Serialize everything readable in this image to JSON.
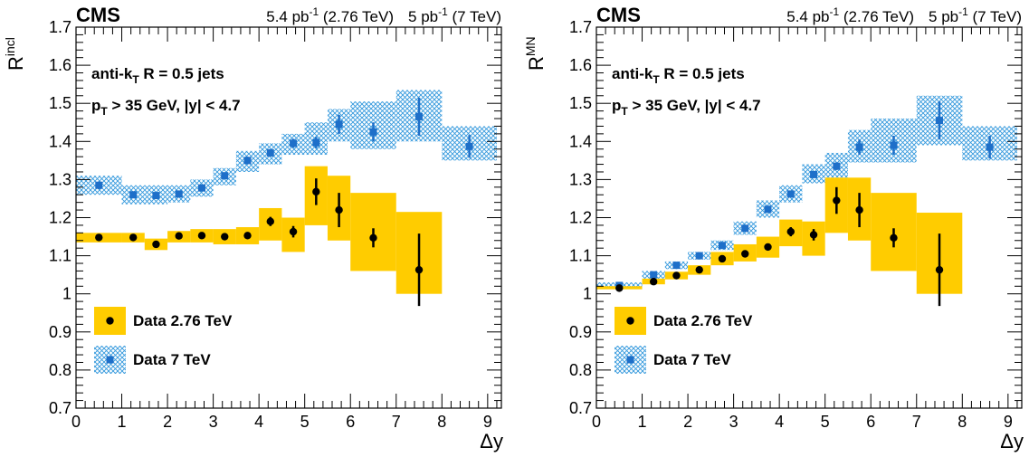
{
  "colors": {
    "band_2760": "#FFCC00",
    "hatch_7000": "#3399DD",
    "marker_2760": "#000000",
    "marker_7000": "#1E6FC9"
  },
  "chart_data": [
    {
      "type": "scatter",
      "panel": "left",
      "header": {
        "experiment": "CMS",
        "lumi_276": "5.4 pb",
        "lumi_276_sup": "-1",
        "lumi_276_energy": " (2.76 TeV)",
        "lumi_7": "5 pb",
        "lumi_7_sup": "-1",
        "lumi_7_energy": " (7 TeV)"
      },
      "ylabel_main": "R",
      "ylabel_sup": "incl",
      "xlabel": "Δy",
      "annotation_1": {
        "main": "anti-k",
        "sub": "T",
        "rest": " R = 0.5 jets"
      },
      "annotation_2": {
        "main": "p",
        "sub": "T",
        "rest": " > 35 GeV, |y| < 4.7"
      },
      "xlim": [
        0,
        9.3
      ],
      "ylim": [
        0.7,
        1.7
      ],
      "xticks": [
        0,
        1,
        2,
        3,
        4,
        5,
        6,
        7,
        8,
        9
      ],
      "yticks": [
        0.7,
        0.8,
        0.9,
        1,
        1.1,
        1.2,
        1.3,
        1.4,
        1.5,
        1.6,
        1.7
      ],
      "ytick_labels": [
        "0.7",
        "0.8",
        "0.9",
        "1",
        "1.1",
        "1.2",
        "1.3",
        "1.4",
        "1.5",
        "1.6",
        "1.7"
      ],
      "legend": [
        {
          "label": "Data 2.76 TeV",
          "style": "band_2760"
        },
        {
          "label": "Data 7 TeV",
          "style": "hatch_7000"
        }
      ],
      "series": [
        {
          "name": "Data 7 TeV",
          "style": "hatch_7000",
          "points": [
            {
              "x": 0.5,
              "y": 1.285,
              "lo": 0,
              "hi": 1,
              "ylo": 1.26,
              "yhi": 1.31,
              "err": 0.01
            },
            {
              "x": 1.25,
              "y": 1.26,
              "lo": 1,
              "hi": 1.5,
              "ylo": 1.235,
              "yhi": 1.285,
              "err": 0.008
            },
            {
              "x": 1.75,
              "y": 1.258,
              "lo": 1.5,
              "hi": 2,
              "ylo": 1.235,
              "yhi": 1.285,
              "err": 0.008
            },
            {
              "x": 2.25,
              "y": 1.262,
              "lo": 2,
              "hi": 2.5,
              "ylo": 1.24,
              "yhi": 1.285,
              "err": 0.008
            },
            {
              "x": 2.75,
              "y": 1.278,
              "lo": 2.5,
              "hi": 3,
              "ylo": 1.255,
              "yhi": 1.3,
              "err": 0.008
            },
            {
              "x": 3.25,
              "y": 1.31,
              "lo": 3,
              "hi": 3.5,
              "ylo": 1.285,
              "yhi": 1.33,
              "err": 0.008
            },
            {
              "x": 3.75,
              "y": 1.35,
              "lo": 3.5,
              "hi": 4,
              "ylo": 1.32,
              "yhi": 1.375,
              "err": 0.01
            },
            {
              "x": 4.25,
              "y": 1.37,
              "lo": 4,
              "hi": 4.5,
              "ylo": 1.34,
              "yhi": 1.395,
              "err": 0.01
            },
            {
              "x": 4.75,
              "y": 1.395,
              "lo": 4.5,
              "hi": 5,
              "ylo": 1.365,
              "yhi": 1.42,
              "err": 0.012
            },
            {
              "x": 5.25,
              "y": 1.397,
              "lo": 5,
              "hi": 5.5,
              "ylo": 1.365,
              "yhi": 1.45,
              "err": 0.015
            },
            {
              "x": 5.75,
              "y": 1.445,
              "lo": 5.5,
              "hi": 6,
              "ylo": 1.4,
              "yhi": 1.485,
              "err": 0.025
            },
            {
              "x": 6.5,
              "y": 1.425,
              "lo": 6,
              "hi": 7,
              "ylo": 1.38,
              "yhi": 1.505,
              "err": 0.025
            },
            {
              "x": 7.5,
              "y": 1.465,
              "lo": 7,
              "hi": 8,
              "ylo": 1.4,
              "yhi": 1.535,
              "err": 0.05
            },
            {
              "x": 8.6,
              "y": 1.387,
              "lo": 8,
              "hi": 9.2,
              "ylo": 1.35,
              "yhi": 1.44,
              "err": 0.03
            }
          ]
        },
        {
          "name": "Data 2.76 TeV",
          "style": "band_2760",
          "points": [
            {
              "x": 0.5,
              "y": 1.148,
              "lo": 0,
              "hi": 1,
              "ylo": 1.135,
              "yhi": 1.16,
              "err": 0.005
            },
            {
              "x": 1.25,
              "y": 1.148,
              "lo": 1,
              "hi": 1.5,
              "ylo": 1.135,
              "yhi": 1.16,
              "err": 0.005
            },
            {
              "x": 1.75,
              "y": 1.13,
              "lo": 1.5,
              "hi": 2,
              "ylo": 1.115,
              "yhi": 1.145,
              "err": 0.005
            },
            {
              "x": 2.25,
              "y": 1.152,
              "lo": 2,
              "hi": 2.5,
              "ylo": 1.135,
              "yhi": 1.165,
              "err": 0.006
            },
            {
              "x": 2.75,
              "y": 1.153,
              "lo": 2.5,
              "hi": 3,
              "ylo": 1.135,
              "yhi": 1.17,
              "err": 0.006
            },
            {
              "x": 3.25,
              "y": 1.15,
              "lo": 3,
              "hi": 3.5,
              "ylo": 1.13,
              "yhi": 1.17,
              "err": 0.007
            },
            {
              "x": 3.75,
              "y": 1.153,
              "lo": 3.5,
              "hi": 4,
              "ylo": 1.13,
              "yhi": 1.175,
              "err": 0.008
            },
            {
              "x": 4.25,
              "y": 1.19,
              "lo": 4,
              "hi": 4.5,
              "ylo": 1.14,
              "yhi": 1.225,
              "err": 0.012
            },
            {
              "x": 4.75,
              "y": 1.163,
              "lo": 4.5,
              "hi": 5,
              "ylo": 1.11,
              "yhi": 1.2,
              "err": 0.015
            },
            {
              "x": 5.25,
              "y": 1.268,
              "lo": 5,
              "hi": 5.5,
              "ylo": 1.18,
              "yhi": 1.335,
              "err": 0.035
            },
            {
              "x": 5.75,
              "y": 1.22,
              "lo": 5.5,
              "hi": 6,
              "ylo": 1.14,
              "yhi": 1.31,
              "err": 0.045
            },
            {
              "x": 6.5,
              "y": 1.147,
              "lo": 6,
              "hi": 7,
              "ylo": 1.06,
              "yhi": 1.265,
              "err": 0.025
            },
            {
              "x": 7.5,
              "y": 1.063,
              "lo": 7,
              "hi": 8,
              "ylo": 1.0,
              "yhi": 1.215,
              "err": 0.095
            }
          ]
        }
      ]
    },
    {
      "type": "scatter",
      "panel": "right",
      "header": {
        "experiment": "CMS",
        "lumi_276": "5.4 pb",
        "lumi_276_sup": "-1",
        "lumi_276_energy": " (2.76 TeV)",
        "lumi_7": "5 pb",
        "lumi_7_sup": "-1",
        "lumi_7_energy": " (7 TeV)"
      },
      "ylabel_main": "R",
      "ylabel_sup": "MN",
      "xlabel": "Δy",
      "annotation_1": {
        "main": "anti-k",
        "sub": "T",
        "rest": " R = 0.5 jets"
      },
      "annotation_2": {
        "main": "p",
        "sub": "T",
        "rest": " > 35 GeV, |y| < 4.7"
      },
      "xlim": [
        0,
        9.3
      ],
      "ylim": [
        0.7,
        1.7
      ],
      "xticks": [
        0,
        1,
        2,
        3,
        4,
        5,
        6,
        7,
        8,
        9
      ],
      "yticks": [
        0.7,
        0.8,
        0.9,
        1,
        1.1,
        1.2,
        1.3,
        1.4,
        1.5,
        1.6,
        1.7
      ],
      "ytick_labels": [
        "0.7",
        "0.8",
        "0.9",
        "1",
        "1.1",
        "1.2",
        "1.3",
        "1.4",
        "1.5",
        "1.6",
        "1.7"
      ],
      "legend": [
        {
          "label": "Data 2.76 TeV",
          "style": "band_2760"
        },
        {
          "label": "Data 7 TeV",
          "style": "hatch_7000"
        }
      ],
      "series": [
        {
          "name": "Data 7 TeV",
          "style": "hatch_7000",
          "points": [
            {
              "x": 0.5,
              "y": 1.022,
              "lo": 0,
              "hi": 1,
              "ylo": 1.015,
              "yhi": 1.03,
              "err": 0.003
            },
            {
              "x": 1.25,
              "y": 1.05,
              "lo": 1,
              "hi": 1.5,
              "ylo": 1.04,
              "yhi": 1.06,
              "err": 0.004
            },
            {
              "x": 1.75,
              "y": 1.075,
              "lo": 1.5,
              "hi": 2,
              "ylo": 1.065,
              "yhi": 1.085,
              "err": 0.004
            },
            {
              "x": 2.25,
              "y": 1.1,
              "lo": 2,
              "hi": 2.5,
              "ylo": 1.09,
              "yhi": 1.11,
              "err": 0.004
            },
            {
              "x": 2.75,
              "y": 1.127,
              "lo": 2.5,
              "hi": 3,
              "ylo": 1.115,
              "yhi": 1.14,
              "err": 0.005
            },
            {
              "x": 3.25,
              "y": 1.172,
              "lo": 3,
              "hi": 3.5,
              "ylo": 1.155,
              "yhi": 1.19,
              "err": 0.005
            },
            {
              "x": 3.75,
              "y": 1.222,
              "lo": 3.5,
              "hi": 4,
              "ylo": 1.2,
              "yhi": 1.245,
              "err": 0.006
            },
            {
              "x": 4.25,
              "y": 1.262,
              "lo": 4,
              "hi": 4.5,
              "ylo": 1.24,
              "yhi": 1.285,
              "err": 0.007
            },
            {
              "x": 4.75,
              "y": 1.313,
              "lo": 4.5,
              "hi": 5,
              "ylo": 1.29,
              "yhi": 1.34,
              "err": 0.008
            },
            {
              "x": 5.25,
              "y": 1.335,
              "lo": 5,
              "hi": 5.5,
              "ylo": 1.305,
              "yhi": 1.37,
              "err": 0.01
            },
            {
              "x": 5.75,
              "y": 1.385,
              "lo": 5.5,
              "hi": 6,
              "ylo": 1.345,
              "yhi": 1.43,
              "err": 0.02
            },
            {
              "x": 6.5,
              "y": 1.39,
              "lo": 6,
              "hi": 7,
              "ylo": 1.345,
              "yhi": 1.46,
              "err": 0.025
            },
            {
              "x": 7.5,
              "y": 1.455,
              "lo": 7,
              "hi": 8,
              "ylo": 1.39,
              "yhi": 1.52,
              "err": 0.05
            },
            {
              "x": 8.6,
              "y": 1.385,
              "lo": 8,
              "hi": 9.2,
              "ylo": 1.35,
              "yhi": 1.44,
              "err": 0.03
            }
          ]
        },
        {
          "name": "Data 2.76 TeV",
          "style": "band_2760",
          "points": [
            {
              "x": 0.5,
              "y": 1.015,
              "lo": 0,
              "hi": 1,
              "ylo": 1.012,
              "yhi": 1.02,
              "err": 0.002
            },
            {
              "x": 1.25,
              "y": 1.032,
              "lo": 1,
              "hi": 1.5,
              "ylo": 1.025,
              "yhi": 1.04,
              "err": 0.003
            },
            {
              "x": 1.75,
              "y": 1.048,
              "lo": 1.5,
              "hi": 2,
              "ylo": 1.038,
              "yhi": 1.058,
              "err": 0.003
            },
            {
              "x": 2.25,
              "y": 1.063,
              "lo": 2,
              "hi": 2.5,
              "ylo": 1.05,
              "yhi": 1.075,
              "err": 0.004
            },
            {
              "x": 2.75,
              "y": 1.092,
              "lo": 2.5,
              "hi": 3,
              "ylo": 1.075,
              "yhi": 1.11,
              "err": 0.005
            },
            {
              "x": 3.25,
              "y": 1.105,
              "lo": 3,
              "hi": 3.5,
              "ylo": 1.085,
              "yhi": 1.13,
              "err": 0.006
            },
            {
              "x": 3.75,
              "y": 1.123,
              "lo": 3.5,
              "hi": 4,
              "ylo": 1.095,
              "yhi": 1.15,
              "err": 0.007
            },
            {
              "x": 4.25,
              "y": 1.163,
              "lo": 4,
              "hi": 4.5,
              "ylo": 1.125,
              "yhi": 1.195,
              "err": 0.012
            },
            {
              "x": 4.75,
              "y": 1.155,
              "lo": 4.5,
              "hi": 5,
              "ylo": 1.1,
              "yhi": 1.19,
              "err": 0.015
            },
            {
              "x": 5.25,
              "y": 1.245,
              "lo": 5,
              "hi": 5.5,
              "ylo": 1.16,
              "yhi": 1.305,
              "err": 0.035
            },
            {
              "x": 5.75,
              "y": 1.22,
              "lo": 5.5,
              "hi": 6,
              "ylo": 1.14,
              "yhi": 1.305,
              "err": 0.045
            },
            {
              "x": 6.5,
              "y": 1.147,
              "lo": 6,
              "hi": 7,
              "ylo": 1.06,
              "yhi": 1.265,
              "err": 0.025
            },
            {
              "x": 7.5,
              "y": 1.063,
              "lo": 7,
              "hi": 8,
              "ylo": 1.0,
              "yhi": 1.213,
              "err": 0.095
            }
          ]
        }
      ]
    }
  ]
}
